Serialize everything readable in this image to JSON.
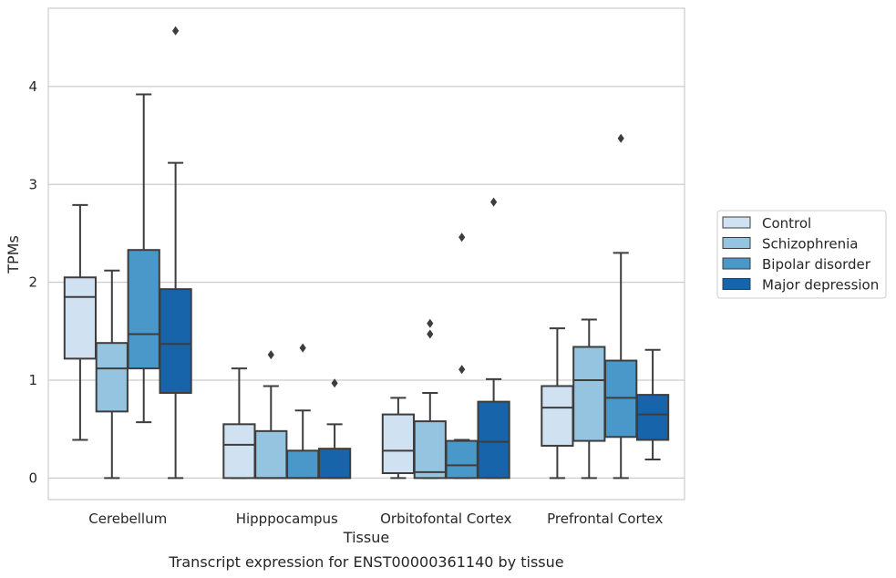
{
  "caption": "Transcript expression for ENST00000361140 by tissue",
  "chart_data": {
    "type": "box",
    "xlabel": "Tissue",
    "ylabel": "TPMs",
    "ylim": [
      -0.22,
      4.8
    ],
    "yticks": [
      0,
      1,
      2,
      3,
      4
    ],
    "grid": "horizontal",
    "legend_position": "right",
    "categories": [
      "Cerebellum",
      "Hipppocampus",
      "Orbitofontal Cortex",
      "Prefrontal Cortex"
    ],
    "series": [
      {
        "name": "Control",
        "color": "#d0e1f2",
        "boxes": [
          {
            "whislo": 0.39,
            "q1": 1.22,
            "med": 1.85,
            "q3": 2.05,
            "whishi": 2.79,
            "fliers": []
          },
          {
            "whislo": 0.0,
            "q1": 0.0,
            "med": 0.34,
            "q3": 0.55,
            "whishi": 1.12,
            "fliers": []
          },
          {
            "whislo": 0.0,
            "q1": 0.05,
            "med": 0.28,
            "q3": 0.65,
            "whishi": 0.82,
            "fliers": []
          },
          {
            "whislo": 0.0,
            "q1": 0.33,
            "med": 0.72,
            "q3": 0.94,
            "whishi": 1.53,
            "fliers": []
          }
        ]
      },
      {
        "name": "Schizophrenia",
        "color": "#94c4df",
        "boxes": [
          {
            "whislo": 0.0,
            "q1": 0.68,
            "med": 1.12,
            "q3": 1.38,
            "whishi": 2.12,
            "fliers": []
          },
          {
            "whislo": 0.0,
            "q1": 0.0,
            "med": 0.0,
            "q3": 0.48,
            "whishi": 0.94,
            "fliers": [
              1.26
            ]
          },
          {
            "whislo": 0.0,
            "q1": 0.0,
            "med": 0.06,
            "q3": 0.58,
            "whishi": 0.87,
            "fliers": [
              1.47,
              1.58
            ]
          },
          {
            "whislo": 0.0,
            "q1": 0.38,
            "med": 1.0,
            "q3": 1.34,
            "whishi": 1.62,
            "fliers": []
          }
        ]
      },
      {
        "name": "Bipolar disorder",
        "color": "#4a98c9",
        "boxes": [
          {
            "whislo": 0.57,
            "q1": 1.12,
            "med": 1.47,
            "q3": 2.33,
            "whishi": 3.92,
            "fliers": []
          },
          {
            "whislo": 0.0,
            "q1": 0.0,
            "med": 0.0,
            "q3": 0.28,
            "whishi": 0.69,
            "fliers": [
              1.33
            ]
          },
          {
            "whislo": 0.0,
            "q1": 0.0,
            "med": 0.13,
            "q3": 0.38,
            "whishi": 0.39,
            "fliers": [
              1.11,
              2.46
            ]
          },
          {
            "whislo": 0.0,
            "q1": 0.42,
            "med": 0.82,
            "q3": 1.2,
            "whishi": 2.3,
            "fliers": [
              3.47
            ]
          }
        ]
      },
      {
        "name": "Major depression",
        "color": "#1764ab",
        "boxes": [
          {
            "whislo": 0.0,
            "q1": 0.87,
            "med": 1.37,
            "q3": 1.93,
            "whishi": 3.22,
            "fliers": [
              4.57
            ]
          },
          {
            "whislo": 0.0,
            "q1": 0.0,
            "med": 0.0,
            "q3": 0.3,
            "whishi": 0.55,
            "fliers": [
              0.97
            ]
          },
          {
            "whislo": 0.0,
            "q1": 0.0,
            "med": 0.37,
            "q3": 0.78,
            "whishi": 1.01,
            "fliers": [
              2.82
            ]
          },
          {
            "whislo": 0.19,
            "q1": 0.39,
            "med": 0.65,
            "q3": 0.85,
            "whishi": 1.31,
            "fliers": []
          }
        ]
      }
    ]
  }
}
